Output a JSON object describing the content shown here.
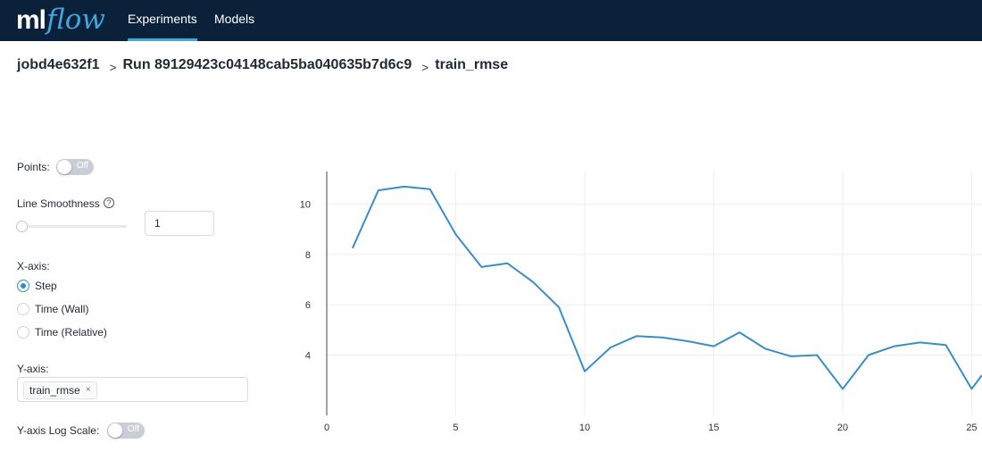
{
  "header": {
    "logo_ml": "ml",
    "logo_flow": "flow",
    "nav": [
      {
        "label": "Experiments",
        "active": true
      },
      {
        "label": "Models",
        "active": false
      }
    ],
    "colors": {
      "background": "#0b213a",
      "accent": "#43a5e0"
    }
  },
  "breadcrumb": {
    "experiment": "jobd4e632f1",
    "run": "Run 89129423c04148cab5ba040635b7d6c9",
    "metric": "train_rmse",
    "separator_icon": "chevron-right-icon"
  },
  "controls": {
    "points_label": "Points:",
    "points_toggle": "Off",
    "smoothness_label": "Line Smoothness",
    "smoothness_help_icon": "question-circle-icon",
    "smoothness_value": "1",
    "xaxis_label": "X-axis:",
    "xaxis_options": [
      {
        "label": "Step",
        "selected": true
      },
      {
        "label": "Time (Wall)",
        "selected": false
      },
      {
        "label": "Time (Relative)",
        "selected": false
      }
    ],
    "yaxis_label": "Y-axis:",
    "yaxis_tag": "train_rmse",
    "yaxis_tag_close": "×",
    "logscale_label": "Y-axis Log Scale:",
    "logscale_toggle": "Off"
  },
  "chart_data": {
    "type": "line",
    "xlabel": "",
    "ylabel": "",
    "xlim": [
      0,
      25.4
    ],
    "ylim": [
      1.6,
      11.3
    ],
    "xticks": [
      0,
      5,
      10,
      15,
      20,
      25
    ],
    "yticks": [
      4,
      6,
      8,
      10
    ],
    "grid": true,
    "line_color": "#3b8dc8",
    "series": [
      {
        "x": [
          1,
          2,
          3,
          4,
          5,
          6,
          7,
          8,
          9,
          10,
          11,
          12,
          13,
          14,
          15,
          16,
          17,
          18,
          19,
          20,
          21,
          22,
          23,
          24,
          25,
          25.4
        ],
        "y": [
          8.25,
          10.55,
          10.7,
          10.6,
          8.8,
          7.5,
          7.65,
          6.9,
          5.9,
          3.35,
          4.3,
          4.75,
          4.7,
          4.55,
          4.35,
          4.9,
          4.25,
          3.95,
          4.0,
          2.65,
          4.0,
          4.35,
          4.5,
          4.4,
          2.65,
          3.2
        ]
      }
    ]
  }
}
